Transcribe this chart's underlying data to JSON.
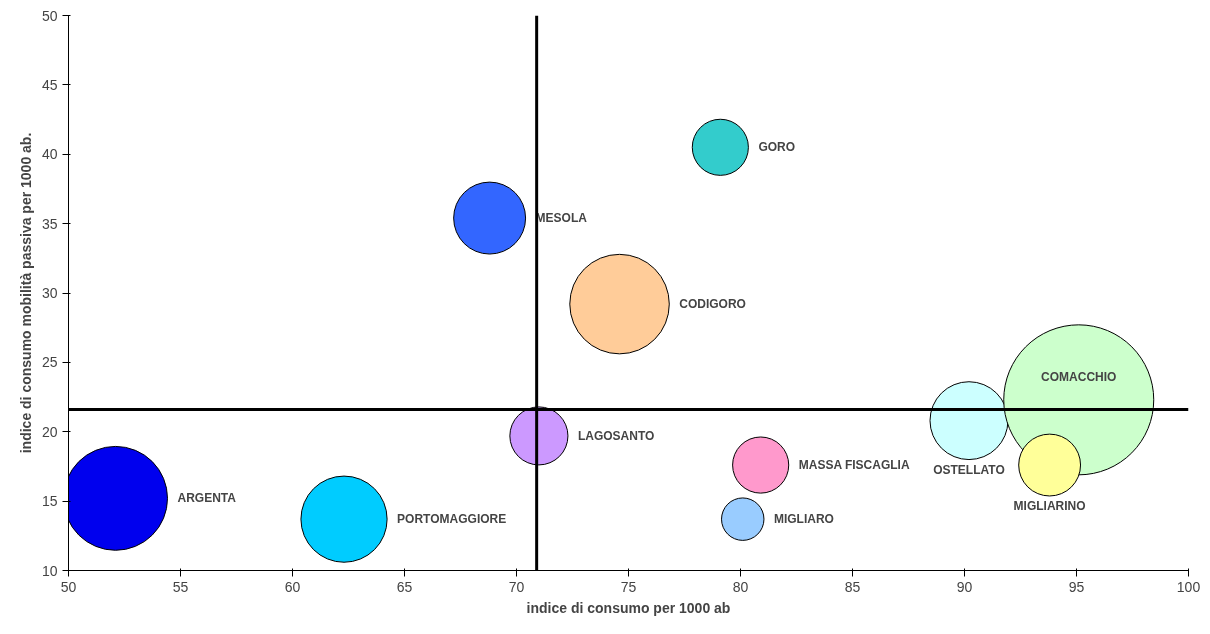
{
  "chart_data": {
    "type": "bubble",
    "xlabel": "indice di consumo per 1000 ab",
    "ylabel": "indice di consumo mobilità passiva per 1000 ab.",
    "series": [
      {
        "name": "ARGENTA",
        "color": "#0000ee",
        "x": [
          52.1
        ],
        "values": [
          15.2
        ],
        "sizes": [
          0.48
        ]
      },
      {
        "name": "PORTOMAGGIORE",
        "color": "#00ccff",
        "x": [
          62.3
        ],
        "values": [
          13.7
        ],
        "sizes": [
          0.33
        ]
      },
      {
        "name": "LAGOSANTO",
        "color": "#cc99ff",
        "x": [
          71.0
        ],
        "values": [
          19.7
        ],
        "sizes": [
          0.15
        ]
      },
      {
        "name": "MESOLA",
        "color": "#3366ff",
        "x": [
          68.8
        ],
        "values": [
          35.4
        ],
        "sizes": [
          0.23
        ]
      },
      {
        "name": "GORO",
        "color": "#33cccc",
        "x": [
          79.1
        ],
        "values": [
          40.5
        ],
        "sizes": [
          0.14
        ]
      },
      {
        "name": "CODIGORO",
        "color": "#ffcc99",
        "x": [
          74.6
        ],
        "values": [
          29.2
        ],
        "sizes": [
          0.44
        ]
      },
      {
        "name": "MASSA FISCAGLIA",
        "color": "#ff99cc",
        "x": [
          80.9
        ],
        "values": [
          17.6
        ],
        "sizes": [
          0.14
        ]
      },
      {
        "name": "MIGLIARO",
        "color": "#99ccff",
        "x": [
          80.1
        ],
        "values": [
          13.7
        ],
        "sizes": [
          0.08
        ]
      },
      {
        "name": "OSTELLATO",
        "color": "#ccffff",
        "x": [
          90.2
        ],
        "values": [
          20.8
        ],
        "sizes": [
          0.27
        ]
      },
      {
        "name": "COMACCHIO",
        "color": "#ccffcc",
        "x": [
          95.1
        ],
        "values": [
          22.3
        ],
        "sizes": [
          1
        ]
      },
      {
        "name": "MIGLIARINO",
        "color": "#ffff99",
        "x": [
          93.8
        ],
        "values": [
          17.6
        ],
        "sizes": [
          0.17
        ]
      }
    ],
    "xlim": [
      50,
      100
    ],
    "xticks": [
      50,
      55,
      60,
      65,
      70,
      75,
      80,
      85,
      90,
      95,
      100
    ],
    "ylim": [
      10,
      50
    ],
    "yticks": [
      10,
      15,
      20,
      25,
      30,
      35,
      40,
      45,
      50
    ],
    "ref_lines": [
      {
        "axis": "x",
        "value": 70.9,
        "color": "#000000"
      },
      {
        "axis": "y",
        "value": 21.6,
        "color": "#000000"
      }
    ],
    "grid": false
  }
}
